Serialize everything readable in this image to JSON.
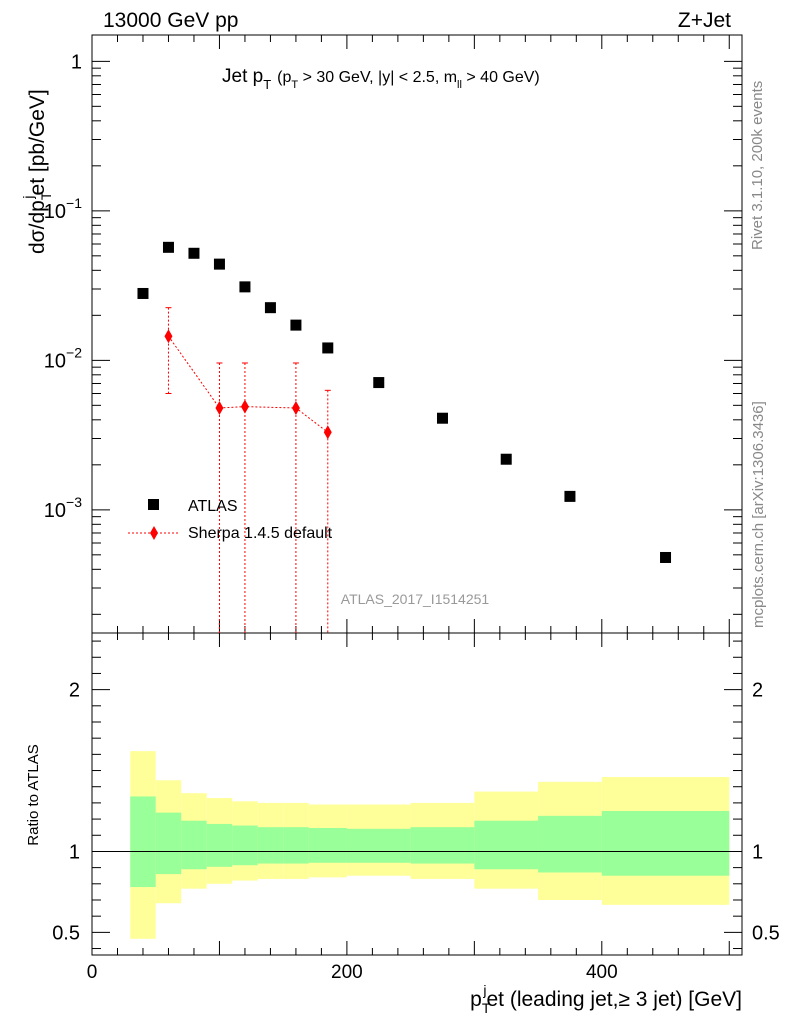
{
  "chart_data": [
    {
      "type": "scatter",
      "panel": "main",
      "title": "Jet p_T (p_T > 30 GeV, |y| < 2.5, m_ll > 40 GeV)",
      "title_parts": {
        "main": "Jet p",
        "main_sub": "T",
        "cuts": "(p",
        "cuts_sub1": "T",
        "cuts_mid": " > 30 GeV, |y| < 2.5, m",
        "cuts_sub2": "ll",
        "cuts_end": " > 40 GeV)"
      },
      "top_left": "13000 GeV pp",
      "top_right": "Z+Jet",
      "ylabel": "dσ/dp_T^jet [pb/GeV]",
      "ylabel_parts": {
        "a": "dσ/dp",
        "sub": "T",
        "sup": "j",
        "b": "et [pb/GeV]"
      },
      "yscale": "log",
      "ylim": [
        0.00015,
        1.5
      ],
      "xlim": [
        0,
        510
      ],
      "ytick_labels": [
        {
          "value": 1,
          "base": "1",
          "exp": ""
        },
        {
          "value": 0.1,
          "base": "10",
          "exp": "−1"
        },
        {
          "value": 0.01,
          "base": "10",
          "exp": "−2"
        },
        {
          "value": 0.001,
          "base": "10",
          "exp": "−3"
        }
      ],
      "watermark": "ATLAS_2017_I1514251",
      "series": [
        {
          "name": "ATLAS",
          "color": "#000000",
          "marker": "square",
          "x": [
            40,
            60,
            80,
            100,
            120,
            140,
            160,
            185,
            225,
            275,
            325,
            375,
            450
          ],
          "y": [
            0.028,
            0.057,
            0.052,
            0.044,
            0.031,
            0.0225,
            0.0172,
            0.0121,
            0.0071,
            0.0041,
            0.00218,
            0.00123,
            0.00048
          ]
        },
        {
          "name": "Sherpa 1.4.5 default",
          "color": "#ff0000",
          "marker": "diamond",
          "x": [
            60,
            100,
            120,
            160,
            185
          ],
          "y": [
            0.0145,
            0.0048,
            0.0049,
            0.0048,
            0.0033
          ],
          "yerr_low": [
            0.006,
            0.00015,
            0.00015,
            0.00015,
            0.00015
          ],
          "yerr_high": [
            0.0225,
            0.0096,
            0.0096,
            0.0096,
            0.0063
          ]
        }
      ]
    },
    {
      "type": "area",
      "panel": "ratio",
      "ylabel": "Ratio to ATLAS",
      "xlabel": "p_T^jet (leading jet, ≥ 3 jet) [GeV]",
      "xlabel_parts": {
        "a": "p",
        "sub": "T",
        "sup": "j",
        "b": "et (leading jet,≥ 3 jet) [GeV]"
      },
      "ylim": [
        0.36,
        2.35
      ],
      "xlim": [
        0,
        510
      ],
      "xticks": [
        0,
        200,
        400
      ],
      "yticks": [
        0.5,
        1,
        2
      ],
      "bins": [
        {
          "lo": 30,
          "hi": 50,
          "inner": [
            0.78,
            1.34
          ],
          "outer": [
            0.46,
            1.62
          ]
        },
        {
          "lo": 50,
          "hi": 70,
          "inner": [
            0.86,
            1.24
          ],
          "outer": [
            0.68,
            1.44
          ]
        },
        {
          "lo": 70,
          "hi": 90,
          "inner": [
            0.89,
            1.19
          ],
          "outer": [
            0.77,
            1.36
          ]
        },
        {
          "lo": 90,
          "hi": 110,
          "inner": [
            0.905,
            1.17
          ],
          "outer": [
            0.8,
            1.33
          ]
        },
        {
          "lo": 110,
          "hi": 130,
          "inner": [
            0.915,
            1.16
          ],
          "outer": [
            0.82,
            1.31
          ]
        },
        {
          "lo": 130,
          "hi": 150,
          "inner": [
            0.925,
            1.15
          ],
          "outer": [
            0.83,
            1.3
          ]
        },
        {
          "lo": 150,
          "hi": 170,
          "inner": [
            0.925,
            1.15
          ],
          "outer": [
            0.83,
            1.3
          ]
        },
        {
          "lo": 170,
          "hi": 200,
          "inner": [
            0.93,
            1.145
          ],
          "outer": [
            0.84,
            1.29
          ]
        },
        {
          "lo": 200,
          "hi": 250,
          "inner": [
            0.93,
            1.14
          ],
          "outer": [
            0.85,
            1.29
          ]
        },
        {
          "lo": 250,
          "hi": 300,
          "inner": [
            0.925,
            1.15
          ],
          "outer": [
            0.83,
            1.3
          ]
        },
        {
          "lo": 300,
          "hi": 350,
          "inner": [
            0.89,
            1.19
          ],
          "outer": [
            0.77,
            1.37
          ]
        },
        {
          "lo": 350,
          "hi": 400,
          "inner": [
            0.87,
            1.22
          ],
          "outer": [
            0.7,
            1.43
          ]
        },
        {
          "lo": 400,
          "hi": 500,
          "inner": [
            0.85,
            1.25
          ],
          "outer": [
            0.67,
            1.46
          ]
        }
      ],
      "colors": {
        "inner": "#99ff99",
        "outer": "#ffff99"
      }
    }
  ],
  "side_labels": {
    "rivet": "Rivet 3.1.10,  200k events",
    "mcplots": "mcplots.cern.ch [arXiv:1306.3436]"
  }
}
